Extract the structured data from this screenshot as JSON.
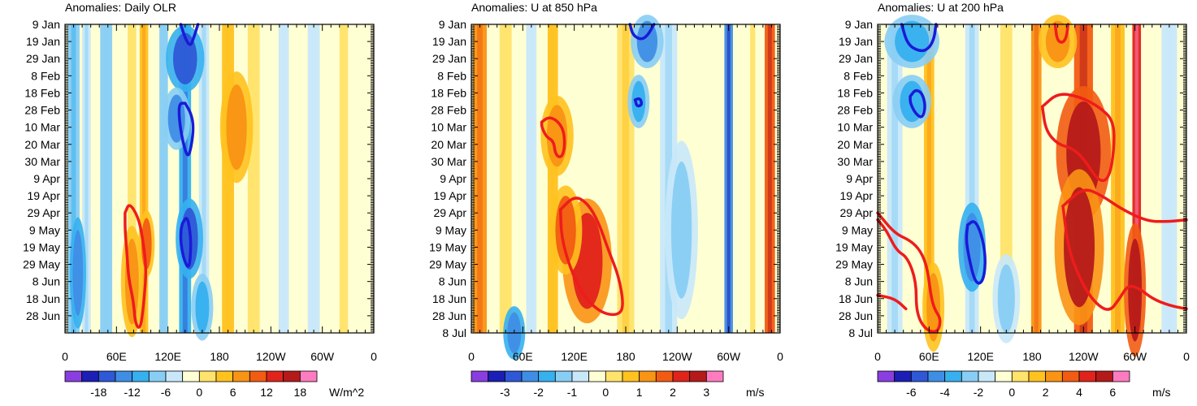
{
  "palette": {
    "blue_red": [
      "#8a3ee0",
      "#1b1fb5",
      "#2e58d6",
      "#3f8ee5",
      "#36b0ef",
      "#88cdf4",
      "#c8e8fa",
      "#ffffd4",
      "#ffe36b",
      "#ffc21f",
      "#f99414",
      "#f25c12",
      "#e0231b",
      "#b51a1a",
      "#ff7bc0"
    ],
    "contour_positive": "#ee1c1c",
    "contour_negative": "#1a1ad8"
  },
  "chart_data": [
    {
      "type": "heatmap",
      "id": "olr",
      "title": "Anomalies: Daily OLR",
      "xlabel": "",
      "ylabel": "",
      "x_ticks": [
        "0",
        "60E",
        "120E",
        "180",
        "120W",
        "60W",
        "0"
      ],
      "y_ticks": [
        "9 Jan",
        "19 Jan",
        "29 Jan",
        "8 Feb",
        "18 Feb",
        "28 Feb",
        "10 Mar",
        "20 Mar",
        "30 Mar",
        "9 Apr",
        "19 Apr",
        "29 Apr",
        "9 May",
        "19 May",
        "29 May",
        "8 Jun",
        "18 Jun",
        "28 Jun"
      ],
      "colorbar_labels": [
        "-18",
        "-12",
        "-6",
        "0",
        "6",
        "12",
        "18"
      ],
      "colorbar_unit": "W/m^2",
      "colorbar_levels": 15,
      "stripes": [
        {
          "lon": 10,
          "width": 14,
          "value": -7
        },
        {
          "lon": 25,
          "width": 10,
          "value": -4
        },
        {
          "lon": 48,
          "width": 14,
          "value": -5
        },
        {
          "lon": 78,
          "width": 10,
          "value": 3
        },
        {
          "lon": 92,
          "width": 10,
          "value": 6
        },
        {
          "lon": 115,
          "width": 10,
          "value": -5
        },
        {
          "lon": 140,
          "width": 14,
          "value": -10
        },
        {
          "lon": 162,
          "width": 12,
          "value": -4
        },
        {
          "lon": 190,
          "width": 14,
          "value": 5
        },
        {
          "lon": 220,
          "width": 14,
          "value": 2
        },
        {
          "lon": 255,
          "width": 12,
          "value": -2
        },
        {
          "lon": 290,
          "width": 14,
          "value": -3
        },
        {
          "lon": 325,
          "width": 10,
          "value": 2
        }
      ],
      "blobs": [
        {
          "lon": 140,
          "day": 20,
          "rx": 14,
          "ry": 15,
          "value": -14
        },
        {
          "lon": 130,
          "day": 55,
          "rx": 10,
          "ry": 14,
          "value": -12
        },
        {
          "lon": 145,
          "day": 125,
          "rx": 10,
          "ry": 18,
          "value": -14
        },
        {
          "lon": 15,
          "day": 145,
          "rx": 6,
          "ry": 25,
          "value": -13
        },
        {
          "lon": 78,
          "day": 150,
          "rx": 8,
          "ry": 25,
          "value": 9
        },
        {
          "lon": 95,
          "day": 128,
          "rx": 6,
          "ry": 15,
          "value": 12
        },
        {
          "lon": 200,
          "day": 60,
          "rx": 12,
          "ry": 25,
          "value": 10
        },
        {
          "lon": 160,
          "day": 165,
          "rx": 8,
          "ry": 15,
          "value": -10
        }
      ],
      "contours": [
        {
          "sign": "negative",
          "points": [
            [
              155,
              0
            ],
            [
              150,
              8
            ],
            [
              146,
              13
            ],
            [
              140,
              8
            ],
            [
              135,
              0
            ]
          ]
        },
        {
          "sign": "negative",
          "points": [
            [
              140,
              46
            ],
            [
              147,
              52
            ],
            [
              150,
              60
            ],
            [
              147,
              72
            ],
            [
              143,
              78
            ],
            [
              137,
              68
            ],
            [
              133,
              55
            ],
            [
              133,
              46
            ],
            [
              140,
              46
            ]
          ]
        },
        {
          "sign": "negative",
          "points": [
            [
              137,
              116
            ],
            [
              142,
              112
            ],
            [
              145,
              118
            ],
            [
              147,
              128
            ],
            [
              145,
              143
            ],
            [
              139,
              138
            ],
            [
              135,
              128
            ],
            [
              135,
              120
            ],
            [
              137,
              116
            ]
          ]
        },
        {
          "sign": "positive",
          "points": [
            [
              70,
              110
            ],
            [
              75,
              104
            ],
            [
              85,
              112
            ],
            [
              90,
              123
            ],
            [
              95,
              142
            ],
            [
              92,
              162
            ],
            [
              88,
              178
            ],
            [
              82,
              175
            ],
            [
              80,
              162
            ],
            [
              74,
              148
            ],
            [
              72,
              132
            ],
            [
              70,
              120
            ],
            [
              70,
              110
            ]
          ]
        }
      ]
    },
    {
      "type": "heatmap",
      "id": "u850",
      "title": "Anomalies: U at 850 hPa",
      "xlabel": "",
      "ylabel": "",
      "x_ticks": [
        "0",
        "60E",
        "120E",
        "180",
        "120W",
        "60W",
        "0"
      ],
      "y_ticks": [
        "9 Jan",
        "19 Jan",
        "29 Jan",
        "8 Feb",
        "18 Feb",
        "28 Feb",
        "10 Mar",
        "20 Mar",
        "30 Mar",
        "9 Apr",
        "19 Apr",
        "29 Apr",
        "9 May",
        "19 May",
        "29 May",
        "8 Jun",
        "18 Jun",
        "28 Jun",
        "8 Jul"
      ],
      "colorbar_labels": [
        "-3",
        "-2",
        "-1",
        "0",
        "1",
        "2",
        "3"
      ],
      "colorbar_unit": "m/s",
      "colorbar_levels": 15,
      "stripes": [
        {
          "lon": 10,
          "width": 16,
          "value": 1.5
        },
        {
          "lon": 40,
          "width": 14,
          "value": 0.5
        },
        {
          "lon": 70,
          "width": 12,
          "value": -0.5
        },
        {
          "lon": 95,
          "width": 12,
          "value": 0.8
        },
        {
          "lon": 180,
          "width": 20,
          "value": 0.6
        },
        {
          "lon": 230,
          "width": 20,
          "value": -0.6
        },
        {
          "lon": 300,
          "width": 10,
          "value": -2
        },
        {
          "lon": 328,
          "width": 6,
          "value": 0.3
        },
        {
          "lon": 348,
          "width": 12,
          "value": 2.2
        }
      ],
      "blobs": [
        {
          "lon": 135,
          "day": 138,
          "rx": 18,
          "ry": 28,
          "value": 2.5
        },
        {
          "lon": 110,
          "day": 120,
          "rx": 12,
          "ry": 20,
          "value": 2
        },
        {
          "lon": 100,
          "day": 65,
          "rx": 12,
          "ry": 18,
          "value": 1.6
        },
        {
          "lon": 205,
          "day": 10,
          "rx": 12,
          "ry": 12,
          "value": -2
        },
        {
          "lon": 195,
          "day": 45,
          "rx": 8,
          "ry": 12,
          "value": -1.3
        },
        {
          "lon": 245,
          "day": 120,
          "rx": 12,
          "ry": 40,
          "value": -1.2
        },
        {
          "lon": 50,
          "day": 180,
          "rx": 8,
          "ry": 12,
          "value": -2.2
        }
      ],
      "contours": [
        {
          "sign": "negative",
          "points": [
            [
              185,
              0
            ],
            [
              188,
              6
            ],
            [
              197,
              9
            ],
            [
              205,
              7
            ],
            [
              213,
              0
            ]
          ]
        },
        {
          "sign": "negative",
          "points": [
            [
              191,
              44
            ],
            [
              197,
              43
            ],
            [
              199,
              47
            ],
            [
              193,
              48
            ],
            [
              191,
              44
            ]
          ]
        },
        {
          "sign": "positive",
          "points": [
            [
              82,
              57
            ],
            [
              90,
              54
            ],
            [
              100,
              56
            ],
            [
              108,
              62
            ],
            [
              109,
              72
            ],
            [
              105,
              78
            ],
            [
              98,
              76
            ],
            [
              96,
              68
            ],
            [
              88,
              66
            ],
            [
              82,
              60
            ],
            [
              82,
              57
            ]
          ]
        },
        {
          "sign": "positive",
          "points": [
            [
              104,
              108
            ],
            [
              120,
              100
            ],
            [
              135,
              104
            ],
            [
              148,
              115
            ],
            [
              160,
              132
            ],
            [
              172,
              147
            ],
            [
              178,
              165
            ],
            [
              170,
              170
            ],
            [
              150,
              168
            ],
            [
              130,
              158
            ],
            [
              115,
              142
            ],
            [
              105,
              124
            ],
            [
              104,
              108
            ]
          ]
        }
      ]
    },
    {
      "type": "heatmap",
      "id": "u200",
      "title": "Anomalies: U at 200 hPa",
      "xlabel": "",
      "ylabel": "",
      "x_ticks": [
        "0",
        "60E",
        "120E",
        "180",
        "120W",
        "60W",
        "0"
      ],
      "y_ticks": [
        "9 Jan",
        "19 Jan",
        "29 Jan",
        "8 Feb",
        "18 Feb",
        "28 Feb",
        "10 Mar",
        "20 Mar",
        "30 Mar",
        "9 Apr",
        "19 Apr",
        "29 Apr",
        "9 May",
        "19 May",
        "29 May",
        "8 Jun",
        "18 Jun",
        "28 Jun",
        "8 Jul"
      ],
      "colorbar_labels": [
        "-6",
        "-4",
        "-2",
        "0",
        "2",
        "4",
        "6"
      ],
      "colorbar_unit": "m/s",
      "colorbar_levels": 15,
      "stripes": [
        {
          "lon": 20,
          "width": 18,
          "value": -1.5
        },
        {
          "lon": 60,
          "width": 12,
          "value": 2
        },
        {
          "lon": 110,
          "width": 16,
          "value": -1.5
        },
        {
          "lon": 150,
          "width": 14,
          "value": 0.5
        },
        {
          "lon": 185,
          "width": 12,
          "value": 2.5
        },
        {
          "lon": 240,
          "width": 22,
          "value": 4
        },
        {
          "lon": 280,
          "width": 16,
          "value": 2
        },
        {
          "lon": 302,
          "width": 10,
          "value": 5
        },
        {
          "lon": 340,
          "width": 18,
          "value": -1
        }
      ],
      "blobs": [
        {
          "lon": 240,
          "day": 75,
          "rx": 20,
          "ry": 30,
          "value": 6
        },
        {
          "lon": 235,
          "day": 130,
          "rx": 18,
          "ry": 35,
          "value": 5.5
        },
        {
          "lon": 300,
          "day": 155,
          "rx": 8,
          "ry": 30,
          "value": 6
        },
        {
          "lon": 110,
          "day": 130,
          "rx": 10,
          "ry": 20,
          "value": -4.5
        },
        {
          "lon": 40,
          "day": 10,
          "rx": 20,
          "ry": 12,
          "value": -3
        },
        {
          "lon": 40,
          "day": 45,
          "rx": 14,
          "ry": 12,
          "value": -3
        },
        {
          "lon": 65,
          "day": 165,
          "rx": 8,
          "ry": 20,
          "value": 3
        },
        {
          "lon": 150,
          "day": 160,
          "rx": 10,
          "ry": 20,
          "value": -2.5
        },
        {
          "lon": 210,
          "day": 10,
          "rx": 14,
          "ry": 12,
          "value": 3
        }
      ],
      "contours": [
        {
          "sign": "negative",
          "points": [
            [
              28,
              0
            ],
            [
              35,
              12
            ],
            [
              50,
              16
            ],
            [
              60,
              14
            ],
            [
              66,
              8
            ],
            [
              68,
              0
            ]
          ]
        },
        {
          "sign": "negative",
          "points": [
            [
              38,
              42
            ],
            [
              44,
              38
            ],
            [
              52,
              40
            ],
            [
              56,
              48
            ],
            [
              52,
              55
            ],
            [
              44,
              52
            ],
            [
              38,
              46
            ],
            [
              38,
              42
            ]
          ]
        },
        {
          "sign": "negative",
          "points": [
            [
              105,
              117
            ],
            [
              113,
              114
            ],
            [
              121,
              122
            ],
            [
              126,
              136
            ],
            [
              124,
              148
            ],
            [
              118,
              152
            ],
            [
              112,
              148
            ],
            [
              106,
              135
            ],
            [
              103,
              125
            ],
            [
              105,
              117
            ]
          ]
        },
        {
          "sign": "positive",
          "points": [
            [
              207,
              0
            ],
            [
              209,
              9
            ],
            [
              215,
              11
            ],
            [
              220,
              8
            ],
            [
              222,
              0
            ]
          ]
        },
        {
          "sign": "positive",
          "points": [
            [
              192,
              48
            ],
            [
              210,
              40
            ],
            [
              235,
              42
            ],
            [
              258,
              48
            ],
            [
              275,
              56
            ],
            [
              276,
              72
            ],
            [
              270,
              90
            ],
            [
              258,
              92
            ],
            [
              240,
              78
            ],
            [
              226,
              72
            ],
            [
              210,
              70
            ],
            [
              196,
              62
            ],
            [
              192,
              48
            ]
          ]
        },
        {
          "sign": "positive",
          "points": [
            [
              0,
              114
            ],
            [
              10,
              120
            ],
            [
              22,
              132
            ],
            [
              35,
              136
            ],
            [
              45,
              150
            ],
            [
              45,
              168
            ],
            [
              55,
              178
            ],
            [
              70,
              180
            ],
            [
              74,
              172
            ],
            [
              66,
              166
            ],
            [
              62,
              158
            ],
            [
              58,
              142
            ],
            [
              50,
              132
            ],
            [
              38,
              126
            ],
            [
              20,
              122
            ],
            [
              0,
              110
            ]
          ]
        },
        {
          "sign": "positive",
          "points": [
            [
              0,
              158
            ],
            [
              20,
              160
            ],
            [
              33,
              166
            ]
          ]
        },
        {
          "sign": "positive",
          "points": [
            [
              216,
              106
            ],
            [
              240,
              95
            ],
            [
              262,
              100
            ],
            [
              285,
              108
            ],
            [
              315,
              115
            ],
            [
              340,
              115
            ],
            [
              360,
              114
            ]
          ]
        },
        {
          "sign": "positive",
          "points": [
            [
              216,
              106
            ],
            [
              222,
              130
            ],
            [
              235,
              148
            ],
            [
              252,
              162
            ],
            [
              270,
              168
            ],
            [
              282,
              160
            ],
            [
              292,
              152
            ],
            [
              305,
              154
            ],
            [
              320,
              160
            ],
            [
              340,
              164
            ],
            [
              360,
              166
            ]
          ]
        }
      ]
    }
  ]
}
